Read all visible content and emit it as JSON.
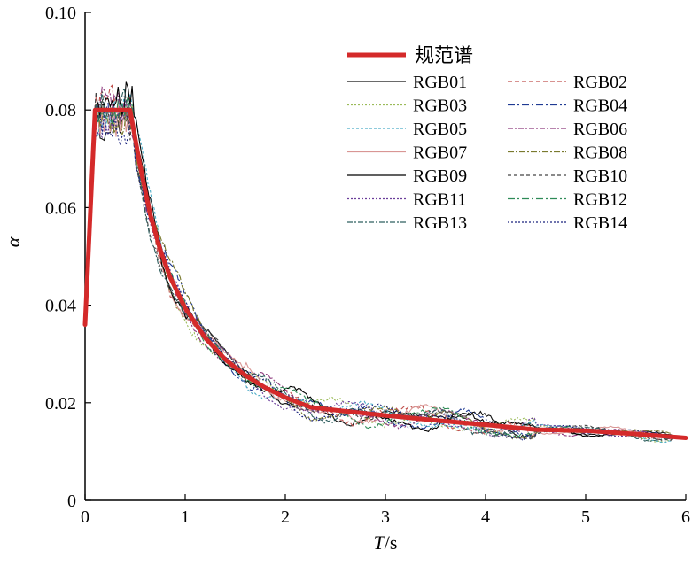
{
  "chart_data": {
    "type": "line",
    "title": "",
    "xlabel_italic": "T",
    "xlabel_unit": "/s",
    "ylabel": "α",
    "xlim": [
      0,
      6
    ],
    "ylim": [
      0,
      0.1
    ],
    "x_ticks": [
      0,
      1,
      2,
      3,
      4,
      5,
      6
    ],
    "x_tick_labels": [
      "0",
      "1",
      "2",
      "3",
      "4",
      "5",
      "6"
    ],
    "y_ticks": [
      0,
      0.02,
      0.04,
      0.06,
      0.08,
      0.1
    ],
    "y_tick_labels": [
      "0",
      "0.02",
      "0.04",
      "0.06",
      "0.08",
      "0.10"
    ],
    "grid": false,
    "legend_position": "top-right",
    "design_spectrum": {
      "name": "规范谱",
      "color": "#d42a2a",
      "points": [
        [
          0,
          0.036
        ],
        [
          0.1,
          0.08
        ],
        [
          0.1,
          0.08
        ],
        [
          0.45,
          0.08
        ],
        [
          0.55,
          0.0685
        ],
        [
          0.65,
          0.0587
        ],
        [
          0.75,
          0.0514
        ],
        [
          0.85,
          0.0457
        ],
        [
          1.0,
          0.0394
        ],
        [
          1.2,
          0.0333
        ],
        [
          1.4,
          0.0289
        ],
        [
          1.6,
          0.0256
        ],
        [
          1.8,
          0.0231
        ],
        [
          2.0,
          0.0211
        ],
        [
          2.2,
          0.0195
        ],
        [
          2.25,
          0.0191
        ],
        [
          2.5,
          0.0185
        ],
        [
          3.0,
          0.0174
        ],
        [
          3.5,
          0.0164
        ],
        [
          4.0,
          0.0155
        ],
        [
          4.5,
          0.0145
        ],
        [
          5.0,
          0.0143
        ],
        [
          5.5,
          0.0136
        ],
        [
          6.0,
          0.0128
        ]
      ]
    },
    "series": [
      {
        "name": "RGB01",
        "color": "#111111",
        "dash": "solid"
      },
      {
        "name": "RGB02",
        "color": "#c0504d",
        "dash": "5,3"
      },
      {
        "name": "RGB03",
        "color": "#9bbb59",
        "dash": "2,2"
      },
      {
        "name": "RGB04",
        "color": "#1f3a93",
        "dash": "8,3,2,3"
      },
      {
        "name": "RGB05",
        "color": "#4bacc6",
        "dash": "3,2"
      },
      {
        "name": "RGB06",
        "color": "#8e3a7e",
        "dash": "6,2,2,2"
      },
      {
        "name": "RGB07",
        "color": "#d99694",
        "dash": "solid"
      },
      {
        "name": "RGB08",
        "color": "#7a7a2e",
        "dash": "7,2,2,2"
      },
      {
        "name": "RGB09",
        "color": "#000000",
        "dash": "solid"
      },
      {
        "name": "RGB10",
        "color": "#444444",
        "dash": "4,3"
      },
      {
        "name": "RGB11",
        "color": "#6a3d9a",
        "dash": "2,2"
      },
      {
        "name": "RGB12",
        "color": "#2e8b57",
        "dash": "8,3,2,3"
      },
      {
        "name": "RGB13",
        "color": "#2f5f5f",
        "dash": "6,2,2,2"
      },
      {
        "name": "RGB14",
        "color": "#1a237e",
        "dash": "2,2"
      }
    ]
  }
}
